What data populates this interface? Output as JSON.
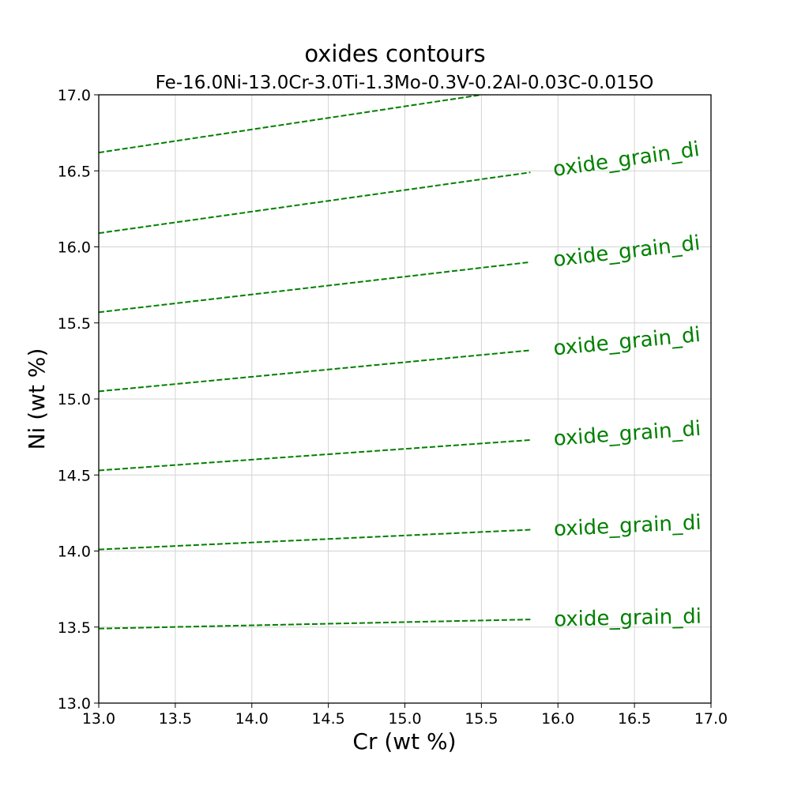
{
  "chart_data": {
    "type": "line",
    "title": "oxides contours",
    "subtitle": "Fe-16.0Ni-13.0Cr-3.0Ti-1.3Mo-0.3V-0.2Al-0.03C-0.015O",
    "xlabel": "Cr (wt %)",
    "ylabel": "Ni (wt %)",
    "xlim": [
      13.0,
      17.0
    ],
    "ylim": [
      13.0,
      17.0
    ],
    "xticks": [
      "13.0",
      "13.5",
      "14.0",
      "14.5",
      "15.0",
      "15.5",
      "16.0",
      "16.5",
      "17.0"
    ],
    "yticks": [
      "13.0",
      "13.5",
      "14.0",
      "14.5",
      "15.0",
      "15.5",
      "16.0",
      "16.5",
      "17.0"
    ],
    "grid": true,
    "line_color": "#008000",
    "line_style": "dashed",
    "series": [
      {
        "x": [
          13.0,
          15.82
        ],
        "y": [
          13.49,
          13.55
        ],
        "label": "oxide_grain_di"
      },
      {
        "x": [
          13.0,
          15.82
        ],
        "y": [
          14.01,
          14.14
        ],
        "label": "oxide_grain_di"
      },
      {
        "x": [
          13.0,
          15.82
        ],
        "y": [
          14.53,
          14.73
        ],
        "label": "oxide_grain_di"
      },
      {
        "x": [
          13.0,
          15.82
        ],
        "y": [
          15.05,
          15.32
        ],
        "label": "oxide_grain_di"
      },
      {
        "x": [
          13.0,
          15.82
        ],
        "y": [
          15.57,
          15.9
        ],
        "label": "oxide_grain_di"
      },
      {
        "x": [
          13.0,
          15.82
        ],
        "y": [
          16.09,
          16.49
        ],
        "label": "oxide_grain_di"
      },
      {
        "x": [
          13.0,
          15.5
        ],
        "y": [
          16.62,
          17.0
        ],
        "label": ""
      }
    ]
  }
}
